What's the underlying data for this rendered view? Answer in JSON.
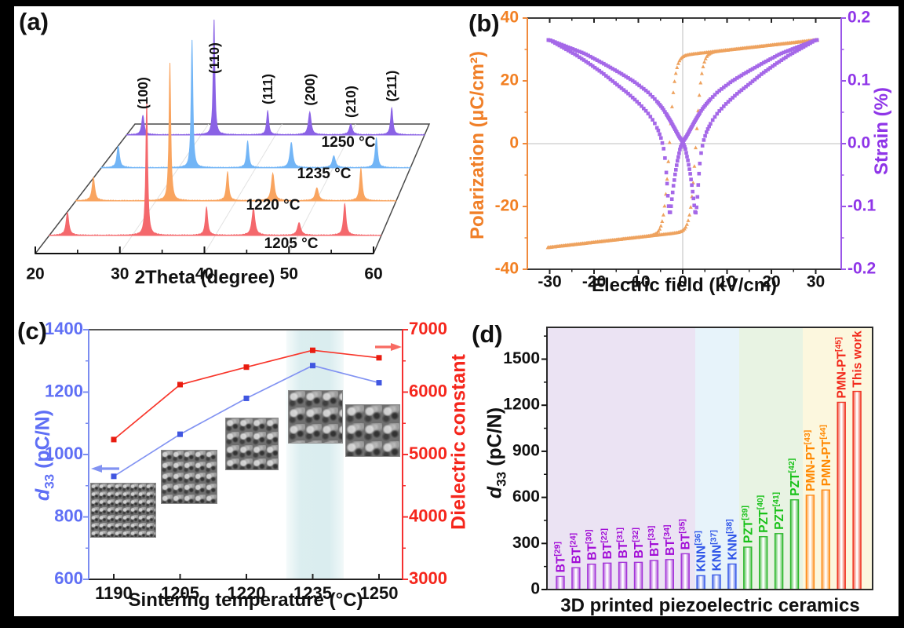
{
  "chart_data": [
    {
      "id": "a",
      "tag": "(a)",
      "type": "line",
      "variant": "xrd-3d-waterfall",
      "xlabel": "2Theta (degree)",
      "xlim": [
        20,
        60
      ],
      "x_ticks": [
        20,
        30,
        40,
        50,
        60
      ],
      "peak_annotations": [
        "(100)",
        "(110)",
        "(111)",
        "(200)",
        "(210)",
        "(211)"
      ],
      "peak_positions_2theta": [
        22.2,
        31.75,
        38.95,
        44.6,
        50.1,
        55.6
      ],
      "peak_relative_intensity": [
        0.17,
        1.0,
        0.21,
        0.2,
        0.095,
        0.235
      ],
      "peak_widths_deg": [
        0.2,
        0.13,
        0.17,
        0.22,
        0.24,
        0.18
      ],
      "series": [
        {
          "name": "1205 °C",
          "color": "#f4686c"
        },
        {
          "name": "1220 °C",
          "color": "#f9a45f"
        },
        {
          "name": "1235 °C",
          "color": "#72b5f6"
        },
        {
          "name": "1250 °C",
          "color": "#8a62e5"
        }
      ]
    },
    {
      "id": "b",
      "tag": "(b)",
      "type": "scatter",
      "xlabel": "Electric field (kV/cm)",
      "ylabel_left": "Polarization (μC/cm²)",
      "ylabel_right": "Strain (%)",
      "x_ticks": [
        -30,
        -20,
        -10,
        0,
        10,
        20,
        30
      ],
      "y_ticks_left": [
        "40",
        "20",
        "0",
        "-20",
        "-40"
      ],
      "y_ticks_right": [
        "0.2",
        "0.1",
        "0.0",
        "-0.1",
        "-0.2"
      ],
      "ylim_left": [
        -40,
        40
      ],
      "ylim_right": [
        -0.2,
        0.2
      ],
      "axis_color_left": "#f08a3c",
      "axis_color_right": "#9a55e8",
      "polarization_loop": {
        "color": "#eea25e",
        "marker": "triangle",
        "saturation_uC_cm2": 33,
        "remnant_uC_cm2": 27.6,
        "coercive_field_kV_cm": 3,
        "model": {
          "amp": 28.2,
          "width": 1.3,
          "slope": 0.16
        }
      },
      "strain_butterfly": {
        "color": "#a568e8",
        "marker": "square",
        "max_strain_pct": 0.165,
        "min_strain_pct": -0.112,
        "dip_field_kV_cm": 2.8,
        "branch_A_points": [
          [
            -30,
            0.165
          ],
          [
            -26,
            0.154
          ],
          [
            -22,
            0.143
          ],
          [
            -18,
            0.128
          ],
          [
            -14,
            0.112
          ],
          [
            -11,
            0.099
          ],
          [
            -8,
            0.083
          ],
          [
            -6,
            0.069
          ],
          [
            -4.5,
            0.056
          ],
          [
            -3.5,
            0.045
          ],
          [
            -2.5,
            0.033
          ],
          [
            -1.5,
            0.02
          ],
          [
            -0.8,
            0.011
          ],
          [
            0,
            0.003
          ],
          [
            0.6,
            -0.008
          ],
          [
            1.2,
            -0.028
          ],
          [
            1.7,
            -0.048
          ],
          [
            2.1,
            -0.068
          ],
          [
            2.5,
            -0.092
          ],
          [
            2.75,
            -0.108
          ],
          [
            2.9,
            -0.112
          ],
          [
            3.1,
            -0.105
          ],
          [
            3.35,
            -0.082
          ],
          [
            3.6,
            -0.055
          ],
          [
            3.9,
            -0.028
          ],
          [
            4.3,
            -0.008
          ],
          [
            4.8,
            0.007
          ],
          [
            5.5,
            0.021
          ],
          [
            6.5,
            0.035
          ],
          [
            8,
            0.05
          ],
          [
            10,
            0.065
          ],
          [
            12.5,
            0.081
          ],
          [
            15,
            0.095
          ],
          [
            18,
            0.112
          ],
          [
            21,
            0.127
          ],
          [
            24,
            0.141
          ],
          [
            27,
            0.153
          ],
          [
            30,
            0.165
          ]
        ]
      }
    },
    {
      "id": "c",
      "tag": "(c)",
      "type": "line",
      "xlabel": "Sintering temperature (°C)",
      "ylabel_left_parts": {
        "italic": "d",
        "sub": "33",
        "rest": " (pC/N)"
      },
      "ylabel_right": "Dielectric constant",
      "categories": [
        1190,
        1205,
        1220,
        1235,
        1250
      ],
      "series": [
        {
          "name": "d33 (pC/N)",
          "axis": "left",
          "line_color": "#8293f2",
          "marker_color": "#4056e0",
          "values": [
            930,
            1065,
            1180,
            1285,
            1230
          ]
        },
        {
          "name": "Dielectric constant",
          "axis": "right",
          "line_color": "#f8352a",
          "marker_color": "#e81c10",
          "values": [
            5240,
            6120,
            6400,
            6670,
            6550
          ]
        }
      ],
      "ylim_left": [
        600,
        1400
      ],
      "y_ticks_left": [
        600,
        800,
        1000,
        1200,
        1400
      ],
      "ylim_right": [
        3000,
        7000
      ],
      "y_ticks_right": [
        3000,
        4000,
        5000,
        6000,
        7000
      ],
      "axis_color_left": "#7b8cf0",
      "axis_color_right": "#f53030",
      "tick_label_color_left": "#5f6ff5",
      "tick_label_color_right": "#f5261c",
      "highlight_band_temp": [
        1229,
        1242
      ],
      "highlight_band_color": "#d8ecee",
      "sem_inset_count": 5
    },
    {
      "id": "d",
      "tag": "(d)",
      "type": "bar",
      "xlabel": "3D printed piezoelectric ceramics",
      "ylabel_parts": {
        "italic": "d",
        "sub": "33",
        "rest": " (pC/N)"
      },
      "ylim": [
        0,
        1690
      ],
      "y_ticks": [
        0,
        300,
        600,
        900,
        1200,
        1500
      ],
      "groups": {
        "BT": {
          "bar_color": "#a435d8",
          "label_color": "#a10dd6",
          "band_color": "#ebe3f3"
        },
        "KNN": {
          "bar_color": "#3b5ce8",
          "label_color": "#2f55e8",
          "band_color": "#e7f3fa"
        },
        "PZT": {
          "bar_color": "#2eb82e",
          "label_color": "#18c118",
          "band_color": "#e8f3e3"
        },
        "PMN-PT": {
          "bar_color": "#ff8c1a",
          "label_color": "#ff8800",
          "band_color": "#fcf7de"
        },
        "THIS": {
          "bar_color": "#f03322",
          "label_color": "#f2291b",
          "band_color": "#fcf7de"
        }
      },
      "bars": [
        {
          "label": "BT",
          "ref": "[29]",
          "value": 85,
          "group": "BT"
        },
        {
          "label": "BT",
          "ref": "[24]",
          "value": 142,
          "group": "BT"
        },
        {
          "label": "BT",
          "ref": "[30]",
          "value": 165,
          "group": "BT"
        },
        {
          "label": "BT",
          "ref": "[22]",
          "value": 172,
          "group": "BT"
        },
        {
          "label": "BT",
          "ref": "[31]",
          "value": 177,
          "group": "BT"
        },
        {
          "label": "BT",
          "ref": "[32]",
          "value": 177,
          "group": "BT"
        },
        {
          "label": "BT",
          "ref": "[33]",
          "value": 189,
          "group": "BT"
        },
        {
          "label": "BT",
          "ref": "[34]",
          "value": 195,
          "group": "BT"
        },
        {
          "label": "BT",
          "ref": "[35]",
          "value": 233,
          "group": "BT"
        },
        {
          "label": "KNN",
          "ref": "[36]",
          "value": 90,
          "group": "KNN"
        },
        {
          "label": "KNN",
          "ref": "[37]",
          "value": 95,
          "group": "KNN"
        },
        {
          "label": "KNN",
          "ref": "[38]",
          "value": 166,
          "group": "KNN"
        },
        {
          "label": "PZT",
          "ref": "[39]",
          "value": 276,
          "group": "PZT"
        },
        {
          "label": "PZT",
          "ref": "[40]",
          "value": 344,
          "group": "PZT"
        },
        {
          "label": "PZT",
          "ref": "[41]",
          "value": 364,
          "group": "PZT"
        },
        {
          "label": "PZT",
          "ref": "[42]",
          "value": 584,
          "group": "PZT"
        },
        {
          "label": "PMN-PT",
          "ref": "[43]",
          "value": 614,
          "group": "PMN-PT"
        },
        {
          "label": "PMN-PT",
          "ref": "[44]",
          "value": 648,
          "group": "PMN-PT"
        },
        {
          "label": "PMN-PT",
          "ref": "[45]",
          "value": 1219,
          "group": "THIS"
        },
        {
          "label": "This work",
          "ref": "",
          "value": 1290,
          "group": "THIS"
        }
      ]
    }
  ]
}
